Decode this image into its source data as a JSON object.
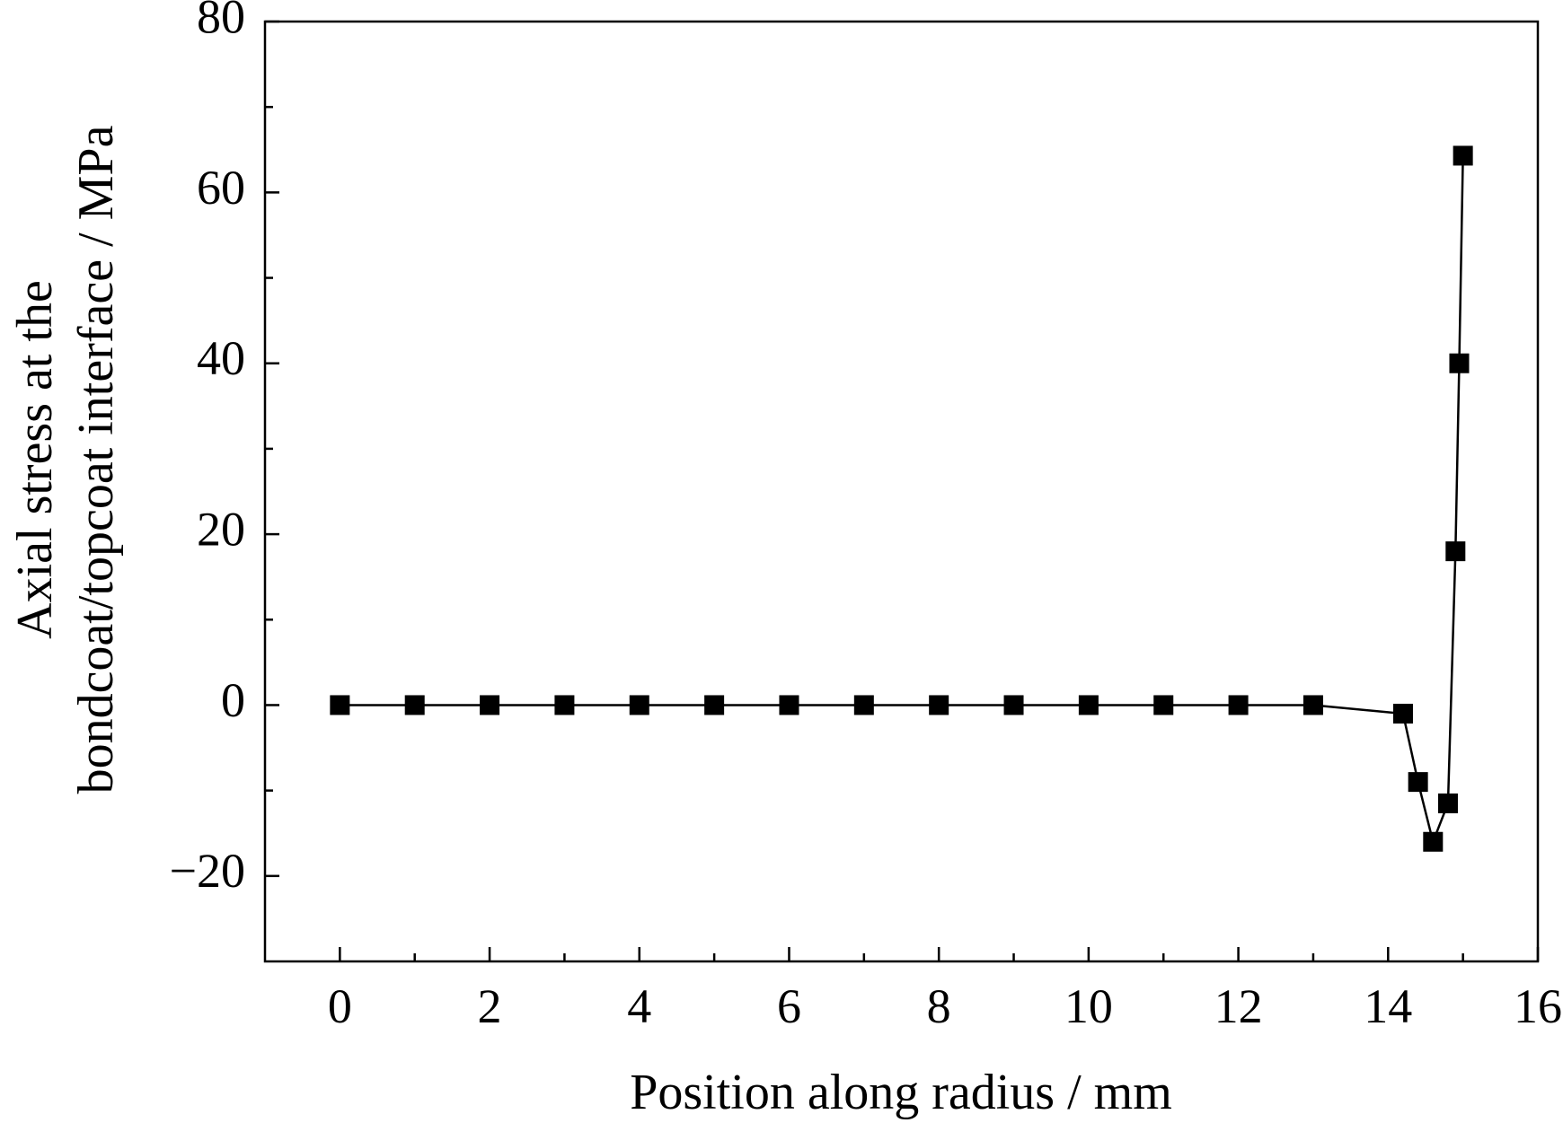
{
  "chart_data": {
    "type": "line",
    "xlabel": "Position along radius / mm",
    "ylabel": [
      "Axial stress at the",
      "bondcoat/topcoat interface / MPa"
    ],
    "x": [
      0,
      1,
      2,
      3,
      4,
      5,
      6,
      7,
      8,
      9,
      10,
      11,
      12,
      13,
      14.2,
      14.4,
      14.6,
      14.8,
      14.9,
      14.95,
      15
    ],
    "series": [
      {
        "color": "#000000",
        "marker": "square",
        "values": [
          0,
          0,
          0,
          0,
          0,
          0,
          0,
          0,
          0,
          0,
          0,
          0,
          0,
          0,
          -1,
          -9,
          -16,
          -11.5,
          18,
          40,
          64.3
        ]
      }
    ],
    "xlim": [
      -1,
      16
    ],
    "ylim": [
      -30,
      80
    ],
    "xticks": [
      0,
      2,
      4,
      6,
      8,
      10,
      12,
      14,
      16
    ],
    "xminorticks": [
      1,
      3,
      5,
      7,
      9,
      11,
      13,
      15
    ],
    "yticks": [
      {
        "value": -20,
        "label": "−20"
      },
      0,
      20,
      40,
      60,
      80
    ],
    "yminorticks": [
      -10,
      10,
      30,
      50,
      70
    ],
    "grid": false
  }
}
